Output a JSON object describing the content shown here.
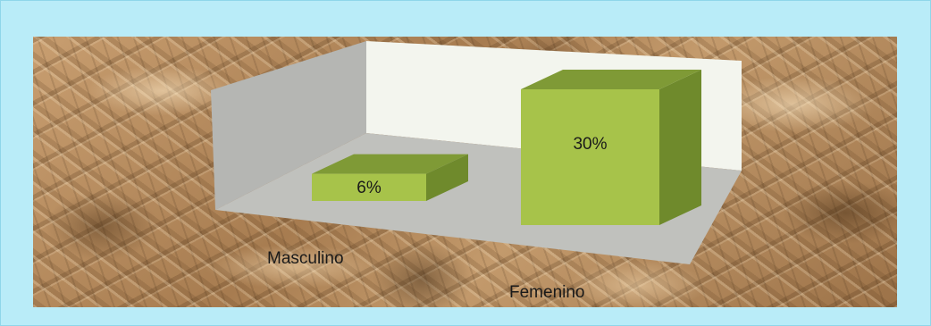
{
  "chart_data": {
    "type": "bar",
    "categories": [
      "Masculino",
      "Femenino"
    ],
    "values": [
      6,
      30
    ],
    "value_labels": [
      "6%",
      "30%"
    ],
    "ylim": [
      0,
      40
    ],
    "style": "3d-column",
    "bar_color": "#a7c34a",
    "bar_top_color": "#7f9a36",
    "bar_side_color": "#6f8a2c",
    "back_wall_color": "#f3f5ee",
    "side_wall_color": "#b5b6b3",
    "floor_color": "#c0c1bd",
    "grid": false,
    "legend": "none"
  }
}
